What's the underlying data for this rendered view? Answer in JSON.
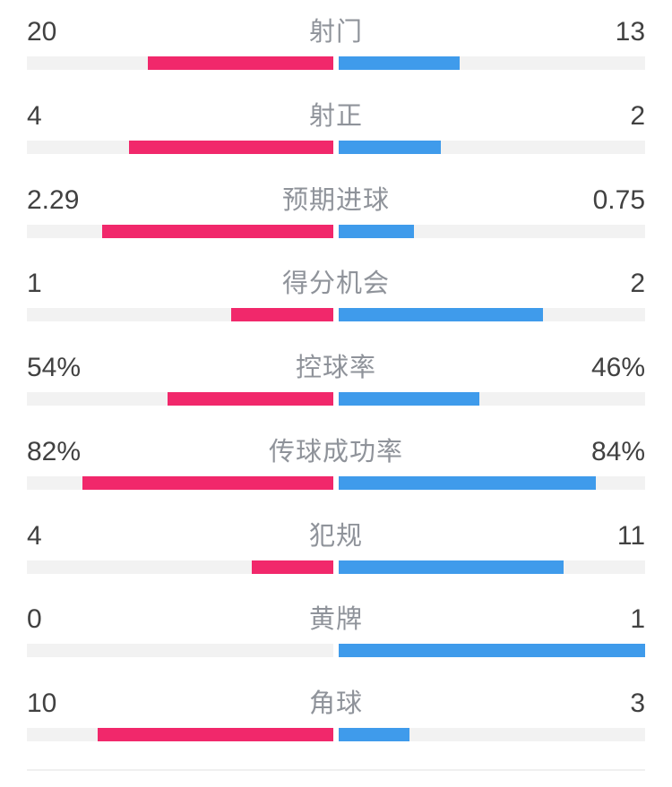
{
  "colors": {
    "home": "#f1286b",
    "away": "#3f9beb",
    "track": "#f2f2f2",
    "divider": "#f0f0f0",
    "value_text": "#414141",
    "label_text": "#8f939a"
  },
  "chart_data": {
    "type": "bar",
    "subtype": "head-to-head match statistics, bars grow outward from center",
    "legend_position": "none",
    "home_color": "#f1286b",
    "away_color": "#3f9beb",
    "stats": [
      {
        "label": "射门",
        "home": 20,
        "away": 13,
        "home_display": "20",
        "away_display": "13",
        "home_frac": 0.606,
        "away_frac": 0.394
      },
      {
        "label": "射正",
        "home": 4,
        "away": 2,
        "home_display": "4",
        "away_display": "2",
        "home_frac": 0.667,
        "away_frac": 0.333
      },
      {
        "label": "预期进球",
        "home": 2.29,
        "away": 0.75,
        "home_display": "2.29",
        "away_display": "0.75",
        "home_frac": 0.753,
        "away_frac": 0.247
      },
      {
        "label": "得分机会",
        "home": 1,
        "away": 2,
        "home_display": "1",
        "away_display": "2",
        "home_frac": 0.333,
        "away_frac": 0.667
      },
      {
        "label": "控球率",
        "home": 54,
        "away": 46,
        "home_display": "54%",
        "away_display": "46%",
        "home_frac": 0.54,
        "away_frac": 0.46
      },
      {
        "label": "传球成功率",
        "home": 82,
        "away": 84,
        "home_display": "82%",
        "away_display": "84%",
        "home_frac": 0.82,
        "away_frac": 0.84
      },
      {
        "label": "犯规",
        "home": 4,
        "away": 11,
        "home_display": "4",
        "away_display": "11",
        "home_frac": 0.267,
        "away_frac": 0.733
      },
      {
        "label": "黄牌",
        "home": 0,
        "away": 1,
        "home_display": "0",
        "away_display": "1",
        "home_frac": 0,
        "away_frac": 1
      },
      {
        "label": "角球",
        "home": 10,
        "away": 3,
        "home_display": "10",
        "away_display": "3",
        "home_frac": 0.769,
        "away_frac": 0.231
      }
    ]
  }
}
